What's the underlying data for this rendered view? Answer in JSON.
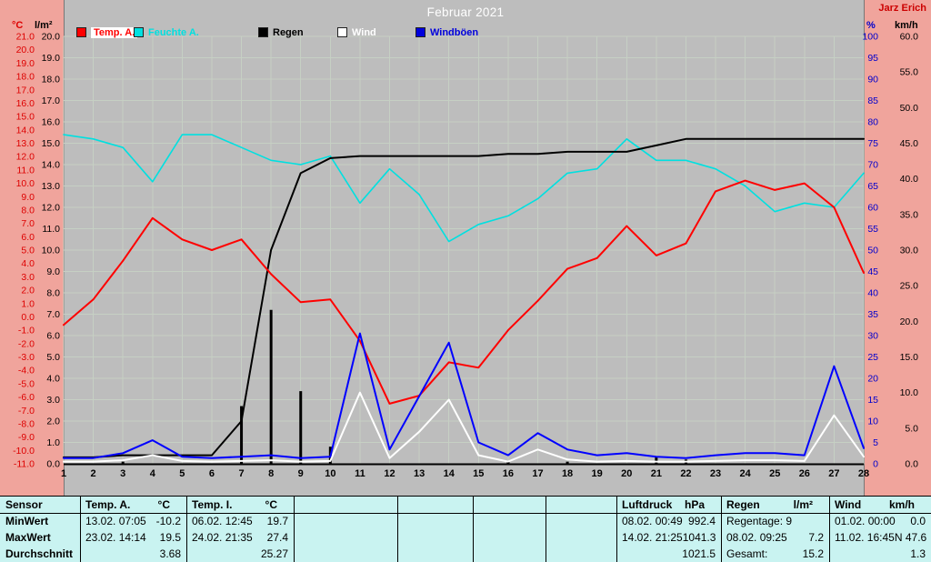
{
  "header": {
    "title": "Februar 2021",
    "watermark": "Jarz Erich"
  },
  "palette": {
    "background": "#bdbdbd",
    "axis_band": "#f0a49c",
    "table_background": "#c9f3f1",
    "grid": "#c6d0c4",
    "title_text": "#ffffff",
    "watermark_text": "#cc0000"
  },
  "legend": [
    {
      "key": "temp-a",
      "label": "Temp. A.",
      "color": "#ff0000",
      "chip": true
    },
    {
      "key": "feuchte-a",
      "label": "Feuchte A.",
      "color": "#00e0e0",
      "chip": false
    },
    {
      "key": "regen",
      "label": "Regen",
      "color": "#000000",
      "chip": false
    },
    {
      "key": "wind",
      "label": "Wind",
      "color": "#ffffff",
      "chip": false
    },
    {
      "key": "windboeen",
      "label": "Windböen",
      "color": "#0000dd",
      "chip": false
    }
  ],
  "chart_data": {
    "type": "line",
    "title": "Februar 2021",
    "x": {
      "min": 1,
      "max": 28,
      "step": 1
    },
    "grid": true,
    "axes": {
      "temp_c": {
        "unit": "°C",
        "min": -11,
        "max": 21,
        "step": 1,
        "side": "left",
        "color": "#dd0000",
        "format": "1dp"
      },
      "rain_lm2": {
        "unit": "l/m²",
        "min": 0,
        "max": 20,
        "step": 1,
        "side": "left",
        "color": "#000000",
        "format": "1dp"
      },
      "humidity_pct": {
        "unit": "%",
        "min": 0,
        "max": 100,
        "step": 5,
        "side": "right",
        "color": "#0000cc",
        "format": "int"
      },
      "wind_kmh": {
        "unit": "km/h",
        "min": 0,
        "max": 60,
        "step": 5,
        "side": "right",
        "color": "#000000",
        "format": "1dp"
      }
    },
    "series": [
      {
        "key": "regen",
        "name": "Regen",
        "type": "bar",
        "axis": "rain_lm2",
        "color": "#000000",
        "width": 3,
        "values": [
          0,
          0,
          0.1,
          0,
          0,
          0,
          2.7,
          7.2,
          3.4,
          0.8,
          0,
          0,
          0,
          0,
          0,
          0.1,
          0,
          0.1,
          0,
          0,
          0.3,
          0.2,
          0,
          0,
          0,
          0,
          0,
          0
        ]
      },
      {
        "key": "feuchte_a",
        "name": "Feuchte A.",
        "type": "line",
        "axis": "humidity_pct",
        "color": "#00e0e0",
        "width": 1.6,
        "values": [
          77,
          76,
          74,
          66,
          77,
          77,
          74,
          71,
          70,
          72,
          61,
          69,
          63,
          52,
          56,
          58,
          62,
          68,
          69,
          76,
          71,
          71,
          69,
          65,
          59,
          61,
          60,
          68
        ]
      },
      {
        "key": "regen_summe",
        "name": "Regen (Summe)",
        "type": "line",
        "axis": "rain_lm2",
        "color": "#000000",
        "width": 2,
        "values": [
          0.3,
          0.3,
          0.4,
          0.4,
          0.4,
          0.4,
          2.0,
          10.0,
          13.6,
          14.3,
          14.4,
          14.4,
          14.4,
          14.4,
          14.4,
          14.5,
          14.5,
          14.6,
          14.6,
          14.6,
          14.9,
          15.2,
          15.2,
          15.2,
          15.2,
          15.2,
          15.2,
          15.2
        ]
      },
      {
        "key": "temp_a",
        "name": "Temp. A.",
        "type": "line",
        "axis": "temp_c",
        "color": "#ff0000",
        "width": 2,
        "values": [
          -0.6,
          1.3,
          4.2,
          7.4,
          5.8,
          5.0,
          5.8,
          3.2,
          1.1,
          1.3,
          -1.8,
          -6.5,
          -5.9,
          -3.4,
          -3.8,
          -1.0,
          1.2,
          3.6,
          4.4,
          6.8,
          4.6,
          5.5,
          9.4,
          10.2,
          9.5,
          10.0,
          8.2,
          3.3
        ]
      },
      {
        "key": "wind",
        "name": "Wind",
        "type": "line",
        "axis": "wind_kmh",
        "color": "#ffffff",
        "width": 2,
        "values": [
          0.3,
          0.3,
          0.5,
          1.2,
          0.4,
          0.3,
          0.4,
          0.5,
          0.3,
          0.4,
          10.0,
          0.8,
          4.5,
          9.0,
          1.2,
          0.3,
          2.0,
          0.6,
          0.3,
          0.4,
          0.3,
          0.3,
          0.4,
          0.5,
          0.5,
          0.4,
          6.8,
          1.0
        ]
      },
      {
        "key": "windboeen",
        "name": "Windböen",
        "type": "line",
        "axis": "wind_kmh",
        "color": "#0000ff",
        "width": 2,
        "values": [
          0.8,
          0.8,
          1.5,
          3.3,
          1.0,
          0.8,
          1.0,
          1.2,
          0.8,
          1.0,
          18.3,
          2.0,
          9.5,
          17.0,
          3.0,
          1.2,
          4.3,
          2.0,
          1.2,
          1.5,
          1.0,
          0.8,
          1.2,
          1.5,
          1.5,
          1.2,
          13.7,
          2.2
        ]
      }
    ]
  },
  "table": {
    "row_labels": [
      "Sensor",
      "MinWert",
      "MaxWert",
      "Durchschnitt"
    ],
    "groups": [
      {
        "name": "Temp. A.",
        "unit": "°C",
        "rows": [
          [
            "13.02.  07:05",
            "-10.2"
          ],
          [
            "23.02.  14:14",
            "19.5"
          ],
          [
            "",
            "3.68"
          ]
        ]
      },
      {
        "name": "Temp. I.",
        "unit": "°C",
        "rows": [
          [
            "06.02.  12:45",
            "19.7"
          ],
          [
            "24.02.  21:35",
            "27.4"
          ],
          [
            "",
            "25.27"
          ]
        ]
      },
      {
        "name": "Luftdruck",
        "unit": "hPa",
        "rows": [
          [
            "08.02.  00:49",
            "992.4"
          ],
          [
            "14.02.  21:25",
            "1041.3"
          ],
          [
            "",
            "1021.5"
          ]
        ]
      },
      {
        "name": "Regen",
        "unit": "l/m²",
        "rows": [
          [
            "Regentage: 9",
            ""
          ],
          [
            "08.02.  09:25",
            "7.2"
          ],
          [
            "Gesamt:",
            "15.2"
          ]
        ]
      },
      {
        "name": "Wind",
        "unit": "km/h",
        "rows": [
          [
            "01.02.  00:00",
            "0.0"
          ],
          [
            "11.02.  16:45",
            "N 47.6"
          ],
          [
            "",
            "1.3"
          ]
        ]
      }
    ]
  }
}
